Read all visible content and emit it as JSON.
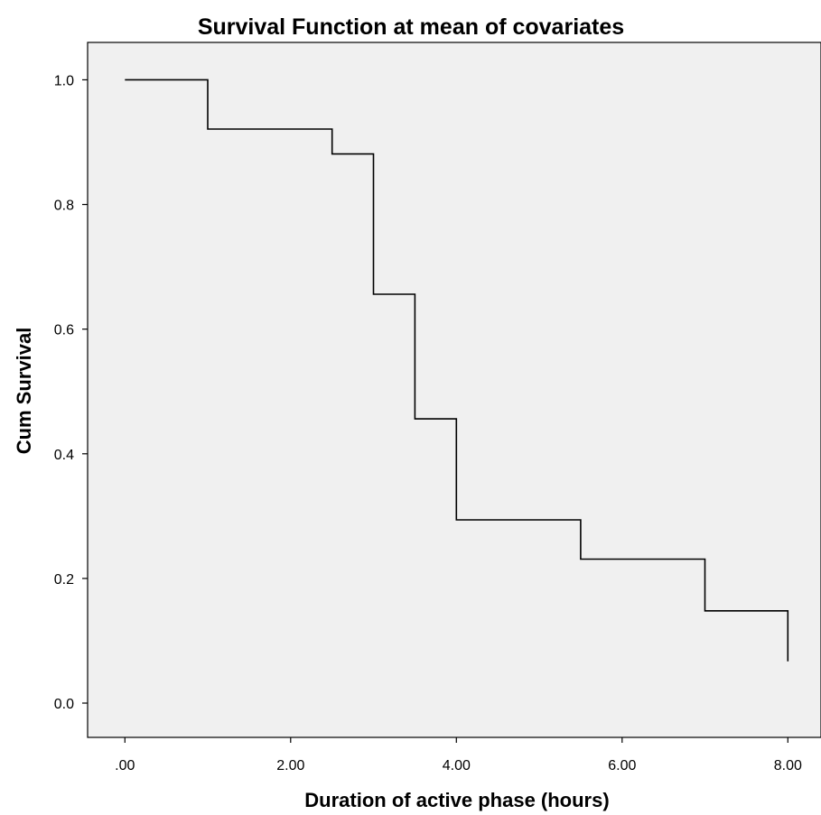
{
  "chart_data": {
    "type": "line",
    "subtype": "step",
    "title": "Survival Function at mean of covariates",
    "xlabel": "Duration of active phase (hours)",
    "ylabel": "Cum Survival",
    "xlim": [
      -0.45,
      8.4
    ],
    "ylim": [
      -0.055,
      1.06
    ],
    "x_ticks": [
      0,
      2,
      4,
      6,
      8
    ],
    "x_tick_labels": [
      ".00",
      "2.00",
      "4.00",
      "6.00",
      "8.00"
    ],
    "y_ticks": [
      0,
      0.2,
      0.4,
      0.6,
      0.8,
      1.0
    ],
    "y_tick_labels": [
      "0.0",
      "0.2",
      "0.4",
      "0.6",
      "0.8",
      "1.0"
    ],
    "grid": false,
    "colors": {
      "plot_background": "#f0f0f0",
      "line": "#000000",
      "frame": "#000000"
    },
    "series": [
      {
        "x": [
          0,
          1.0,
          2.5,
          3.0,
          3.5,
          4.0,
          5.5,
          7.0,
          8.0
        ],
        "y": [
          1.0,
          0.921,
          0.881,
          0.656,
          0.456,
          0.294,
          0.231,
          0.148,
          0.067
        ]
      }
    ]
  }
}
